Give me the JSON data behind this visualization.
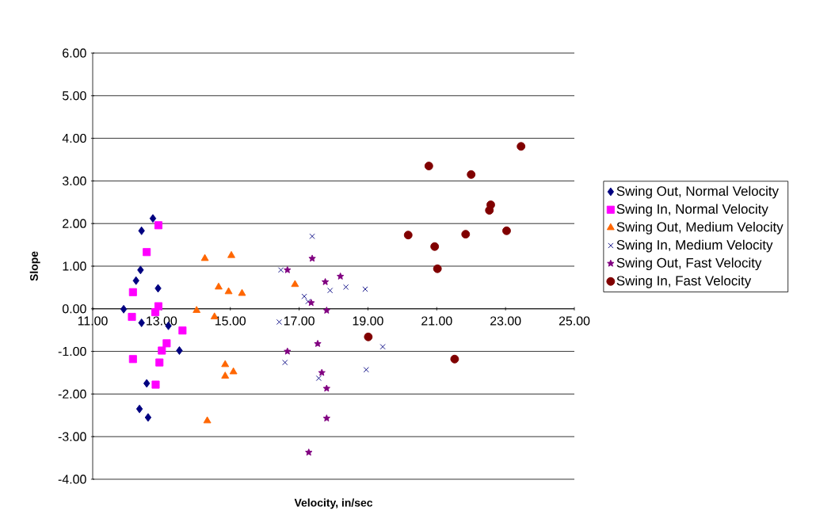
{
  "chart_data": {
    "type": "scatter",
    "xlabel": "Velocity, in/sec",
    "ylabel": "Slope",
    "xlim": [
      11,
      25
    ],
    "ylim": [
      -4,
      6
    ],
    "xticks": [
      {
        "value": 11,
        "label": "11.00"
      },
      {
        "value": 13,
        "label": "13.00"
      },
      {
        "value": 15,
        "label": "15.00"
      },
      {
        "value": 17,
        "label": "17.00"
      },
      {
        "value": 19,
        "label": "19.00"
      },
      {
        "value": 21,
        "label": "21.00"
      },
      {
        "value": 23,
        "label": "23.00"
      },
      {
        "value": 25,
        "label": "25.00"
      }
    ],
    "yticks": [
      {
        "value": -4,
        "label": "-4.00"
      },
      {
        "value": -3,
        "label": "-3.00"
      },
      {
        "value": -2,
        "label": "-2.00"
      },
      {
        "value": -1,
        "label": "-1.00"
      },
      {
        "value": 0,
        "label": "0.00"
      },
      {
        "value": 1,
        "label": "1.00"
      },
      {
        "value": 2,
        "label": "2.00"
      },
      {
        "value": 3,
        "label": "3.00"
      },
      {
        "value": 4,
        "label": "4.00"
      },
      {
        "value": 5,
        "label": "5.00"
      },
      {
        "value": 6,
        "label": "6.00"
      }
    ],
    "grid": "y",
    "legend": "right",
    "series": [
      {
        "name": "Swing Out, Normal Velocity",
        "color": "#000080",
        "marker": "diamond",
        "x": [
          12.75,
          12.42,
          12.39,
          12.26,
          12.9,
          11.9,
          12.42,
          13.2,
          13.52,
          12.57,
          12.36,
          12.61
        ],
        "values": [
          2.12,
          1.83,
          0.91,
          0.66,
          0.48,
          -0.01,
          -0.33,
          -0.4,
          -0.98,
          -1.75,
          -2.35,
          -2.55
        ]
      },
      {
        "name": "Swing In, Normal Velocity",
        "color": "#ff00ff",
        "marker": "square",
        "x": [
          12.91,
          12.57,
          12.17,
          12.91,
          12.82,
          12.14,
          13.61,
          13.15,
          13.01,
          12.17,
          12.94,
          12.83
        ],
        "values": [
          1.96,
          1.33,
          0.39,
          0.06,
          -0.08,
          -0.19,
          -0.51,
          -0.81,
          -0.98,
          -1.18,
          -1.26,
          -1.78
        ]
      },
      {
        "name": "Swing Out, Medium Velocity",
        "color": "#ff6600",
        "marker": "triangle",
        "x": [
          14.26,
          15.03,
          14.66,
          14.95,
          15.34,
          14.02,
          14.54,
          16.88,
          14.85,
          15.09,
          14.85,
          14.33
        ],
        "values": [
          1.18,
          1.25,
          0.51,
          0.4,
          0.36,
          -0.04,
          -0.19,
          0.57,
          -1.31,
          -1.48,
          -1.58,
          -2.63
        ]
      },
      {
        "name": "Swing In, Medium Velocity",
        "color": "#000080",
        "marker": "cross",
        "x": [
          17.38,
          16.47,
          17.15,
          17.26,
          17.9,
          18.36,
          18.92,
          16.42,
          19.43,
          16.59,
          18.95,
          17.57
        ],
        "values": [
          1.7,
          0.91,
          0.29,
          0.17,
          0.43,
          0.51,
          0.46,
          -0.31,
          -0.89,
          -1.26,
          -1.43,
          -1.63
        ]
      },
      {
        "name": "Swing Out, Fast Velocity",
        "color": "#800080",
        "marker": "star",
        "x": [
          17.38,
          16.66,
          17.76,
          18.2,
          17.35,
          17.8,
          17.54,
          16.66,
          17.66,
          17.8,
          17.8,
          17.28
        ],
        "values": [
          1.18,
          0.91,
          0.63,
          0.76,
          0.14,
          -0.04,
          -0.82,
          -1.0,
          -1.5,
          -1.87,
          -2.57,
          -3.37
        ]
      },
      {
        "name": "Swing In, Fast Velocity",
        "color": "#800000",
        "marker": "circle",
        "x": [
          23.45,
          20.77,
          22.0,
          22.57,
          22.53,
          20.17,
          21.84,
          23.03,
          20.94,
          21.02,
          21.52,
          19.01
        ],
        "values": [
          3.81,
          3.35,
          3.15,
          2.44,
          2.31,
          1.73,
          1.75,
          1.83,
          1.46,
          0.94,
          -1.18,
          -0.66
        ]
      }
    ]
  }
}
